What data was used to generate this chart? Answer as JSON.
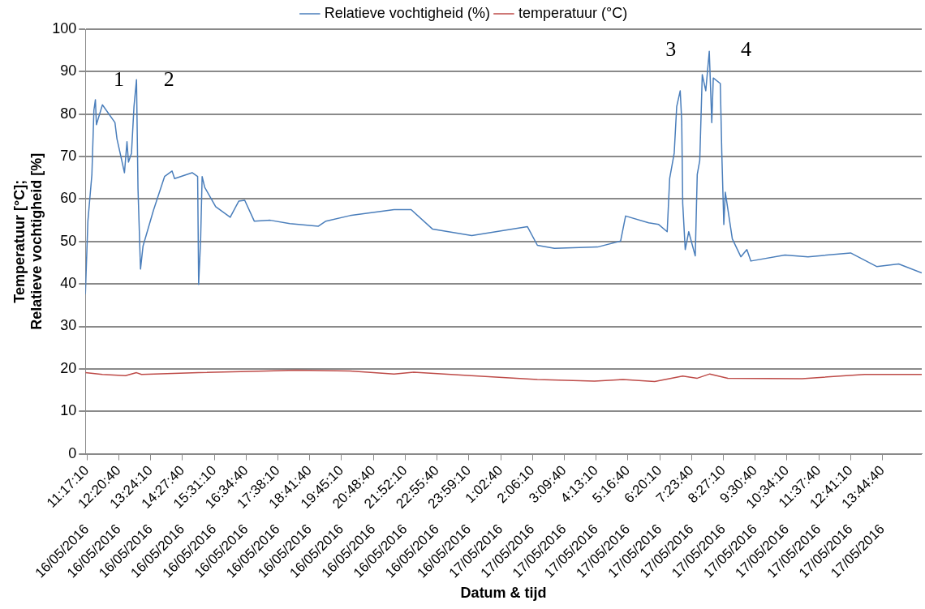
{
  "chart_data": {
    "type": "line",
    "xlabel": "Datum & tijd",
    "ylabel": "Temperatuur [°C];\nRelatieve vochtigheid [%]",
    "legend": "top",
    "grid": "y",
    "ylim": [
      0,
      100
    ],
    "yticks": [
      0,
      10,
      20,
      30,
      40,
      50,
      60,
      70,
      80,
      90,
      100
    ],
    "xlim": [
      "2016-05-16T11:14",
      "2016-05-17T15:03"
    ],
    "xticks": [
      {
        "value": "2016-05-16T11:17:10",
        "label": "11:17:10"
      },
      {
        "value": "2016-05-16T12:20:40",
        "label": "12:20:40"
      },
      {
        "value": "2016-05-16T13:24:10",
        "label": "13:24:10"
      },
      {
        "value": "2016-05-16T14:27:40",
        "label": "14:27:40"
      },
      {
        "value": "2016-05-16T15:31:10",
        "label": "15:31:10"
      },
      {
        "value": "2016-05-16T16:34:40",
        "label": "16:34:40"
      },
      {
        "value": "2016-05-16T17:38:10",
        "label": "17:38:10"
      },
      {
        "value": "2016-05-16T18:41:40",
        "label": "18:41:40"
      },
      {
        "value": "2016-05-16T19:45:10",
        "label": "19:45:10"
      },
      {
        "value": "2016-05-16T20:48:40",
        "label": "20:48:40"
      },
      {
        "value": "2016-05-16T21:52:10",
        "label": "21:52:10"
      },
      {
        "value": "2016-05-16T22:55:40",
        "label": "22:55:40"
      },
      {
        "value": "2016-05-16T23:59:10",
        "label": "23:59:10"
      },
      {
        "value": "2016-05-17T01:02:40",
        "label": "1:02:40"
      },
      {
        "value": "2016-05-17T02:06:10",
        "label": "2:06:10"
      },
      {
        "value": "2016-05-17T03:09:40",
        "label": "3:09:40"
      },
      {
        "value": "2016-05-17T04:13:10",
        "label": "4:13:10"
      },
      {
        "value": "2016-05-17T05:16:40",
        "label": "5:16:40"
      },
      {
        "value": "2016-05-17T06:20:10",
        "label": "6:20:10"
      },
      {
        "value": "2016-05-17T07:23:40",
        "label": "7:23:40"
      },
      {
        "value": "2016-05-17T08:27:10",
        "label": "8:27:10"
      },
      {
        "value": "2016-05-17T09:30:40",
        "label": "9:30:40"
      },
      {
        "value": "2016-05-17T10:34:10",
        "label": "10:34:10"
      },
      {
        "value": "2016-05-17T11:37:40",
        "label": "11:37:40"
      },
      {
        "value": "2016-05-17T12:41:10",
        "label": "12:41:10"
      },
      {
        "value": "2016-05-17T13:44:40",
        "label": "13:44:40"
      }
    ],
    "x2lim": [
      "2016-05-16T11:14",
      "2016-05-17T15:03"
    ],
    "x2ticks": [
      {
        "value": "2016-05-16T11:17:10",
        "label": "16/05/2016"
      },
      {
        "value": "2016-05-16T12:20:40",
        "label": "16/05/2016"
      },
      {
        "value": "2016-05-16T13:24:10",
        "label": "16/05/2016"
      },
      {
        "value": "2016-05-16T14:27:40",
        "label": "16/05/2016"
      },
      {
        "value": "2016-05-16T15:31:10",
        "label": "16/05/2016"
      },
      {
        "value": "2016-05-16T16:34:40",
        "label": "16/05/2016"
      },
      {
        "value": "2016-05-16T17:38:10",
        "label": "16/05/2016"
      },
      {
        "value": "2016-05-16T18:41:40",
        "label": "16/05/2016"
      },
      {
        "value": "2016-05-16T19:45:10",
        "label": "16/05/2016"
      },
      {
        "value": "2016-05-16T20:48:40",
        "label": "16/05/2016"
      },
      {
        "value": "2016-05-16T21:52:10",
        "label": "16/05/2016"
      },
      {
        "value": "2016-05-16T22:55:40",
        "label": "16/05/2016"
      },
      {
        "value": "2016-05-16T23:59:10",
        "label": "16/05/2016"
      },
      {
        "value": "2016-05-17T01:02:40",
        "label": "17/05/2016"
      },
      {
        "value": "2016-05-17T02:06:10",
        "label": "17/05/2016"
      },
      {
        "value": "2016-05-17T03:09:40",
        "label": "17/05/2016"
      },
      {
        "value": "2016-05-17T04:13:10",
        "label": "17/05/2016"
      },
      {
        "value": "2016-05-17T05:16:40",
        "label": "17/05/2016"
      },
      {
        "value": "2016-05-17T06:20:10",
        "label": "17/05/2016"
      },
      {
        "value": "2016-05-17T07:23:40",
        "label": "17/05/2016"
      },
      {
        "value": "2016-05-17T08:27:10",
        "label": "17/05/2016"
      },
      {
        "value": "2016-05-17T09:30:40",
        "label": "17/05/2016"
      },
      {
        "value": "2016-05-17T10:34:10",
        "label": "17/05/2016"
      },
      {
        "value": "2016-05-17T11:37:40",
        "label": "17/05/2016"
      },
      {
        "value": "2016-05-17T12:41:10",
        "label": "17/05/2016"
      },
      {
        "value": "2016-05-17T13:44:40",
        "label": "17/05/2016"
      }
    ],
    "annotations": [
      "1",
      "2",
      "3",
      "4"
    ],
    "series": [
      {
        "name": "Relatieve vochtigheid (%)",
        "color": "#4a7ebb",
        "x": [
          "2016-05-16T11:14",
          "2016-05-16T11:19",
          "2016-05-16T11:27",
          "2016-05-16T11:31",
          "2016-05-16T11:34",
          "2016-05-16T11:36",
          "2016-05-16T11:48",
          "2016-05-16T12:13",
          "2016-05-16T12:17",
          "2016-05-16T12:32",
          "2016-05-16T12:37",
          "2016-05-16T12:40",
          "2016-05-16T12:46",
          "2016-05-16T12:51",
          "2016-05-16T12:56",
          "2016-05-16T12:59",
          "2016-05-16T13:04",
          "2016-05-16T13:09",
          "2016-05-16T13:30",
          "2016-05-16T13:52",
          "2016-05-16T14:07",
          "2016-05-16T14:12",
          "2016-05-16T14:47",
          "2016-05-16T14:58",
          "2016-05-16T15:00",
          "2016-05-16T15:04",
          "2016-05-16T15:07",
          "2016-05-16T15:12",
          "2016-05-16T15:34",
          "2016-05-16T16:03",
          "2016-05-16T16:20",
          "2016-05-16T16:32",
          "2016-05-16T16:51",
          "2016-05-16T17:23",
          "2016-05-16T18:02",
          "2016-05-16T18:59",
          "2016-05-16T19:14",
          "2016-05-16T20:02",
          "2016-05-16T21:30",
          "2016-05-16T22:04",
          "2016-05-16T22:47",
          "2016-05-17T00:05",
          "2016-05-17T01:56",
          "2016-05-17T02:16",
          "2016-05-17T02:50",
          "2016-05-17T04:16",
          "2016-05-17T05:02",
          "2016-05-17T05:12",
          "2016-05-17T05:58",
          "2016-05-17T06:18",
          "2016-05-17T06:35",
          "2016-05-17T06:40",
          "2016-05-17T06:49",
          "2016-05-17T06:54",
          "2016-05-17T07:01",
          "2016-05-17T07:04",
          "2016-05-17T07:06",
          "2016-05-17T07:11",
          "2016-05-17T07:18",
          "2016-05-17T07:31",
          "2016-05-17T07:35",
          "2016-05-17T07:40",
          "2016-05-17T07:45",
          "2016-05-17T07:52",
          "2016-05-17T07:59",
          "2016-05-17T08:04",
          "2016-05-17T08:07",
          "2016-05-17T08:21",
          "2016-05-17T08:24",
          "2016-05-17T08:28",
          "2016-05-17T08:31",
          "2016-05-17T08:45",
          "2016-05-17T09:02",
          "2016-05-17T09:14",
          "2016-05-17T09:22",
          "2016-05-17T10:30",
          "2016-05-17T11:16",
          "2016-05-17T12:41",
          "2016-05-17T13:33",
          "2016-05-17T14:17",
          "2016-05-17T15:03"
        ],
        "values": [
          37.6,
          54.8,
          65.8,
          80.9,
          83.4,
          77.5,
          82.2,
          78,
          74.2,
          66.2,
          73.5,
          68.7,
          70.8,
          81.8,
          88.1,
          62.4,
          43.5,
          48.9,
          57.4,
          65.3,
          66.6,
          64.8,
          66.2,
          65.3,
          39.9,
          50.6,
          65.3,
          62.8,
          58.2,
          55.7,
          59.5,
          59.7,
          54.8,
          55,
          54.2,
          53.6,
          54.8,
          56.1,
          57.5,
          57.5,
          52.9,
          51.4,
          53.5,
          49.1,
          48.4,
          48.7,
          50.1,
          56,
          54.4,
          54,
          52.3,
          64.9,
          70.8,
          81.8,
          85.5,
          78.4,
          59,
          48.1,
          52.3,
          46.6,
          65.8,
          69.1,
          89.3,
          85.5,
          94.8,
          78,
          88.5,
          87.2,
          70.8,
          54,
          61.6,
          50.6,
          46.4,
          48.1,
          45.4,
          46.8,
          46.4,
          47.3,
          44.1,
          44.7,
          42.6
        ]
      },
      {
        "name": "temperatuur (°C)",
        "color": "#be4b48",
        "x": [
          "2016-05-16T11:14",
          "2016-05-16T11:48",
          "2016-05-16T12:34",
          "2016-05-16T12:56",
          "2016-05-16T13:06",
          "2016-05-16T15:00",
          "2016-05-16T17:16",
          "2016-05-16T18:14",
          "2016-05-16T20:02",
          "2016-05-16T21:30",
          "2016-05-16T22:09",
          "2016-05-17T00:04",
          "2016-05-17T02:16",
          "2016-05-17T04:10",
          "2016-05-17T05:07",
          "2016-05-17T06:10",
          "2016-05-17T07:06",
          "2016-05-17T07:35",
          "2016-05-17T08:00",
          "2016-05-17T08:36",
          "2016-05-17T11:04",
          "2016-05-17T13:09",
          "2016-05-17T15:03"
        ],
        "values": [
          19.1,
          18.7,
          18.4,
          19.1,
          18.7,
          19.1,
          19.5,
          19.7,
          19.5,
          18.8,
          19.2,
          18.4,
          17.5,
          17.1,
          17.5,
          17,
          18.3,
          17.8,
          18.8,
          17.8,
          17.7,
          18.7,
          18.7
        ]
      }
    ]
  }
}
